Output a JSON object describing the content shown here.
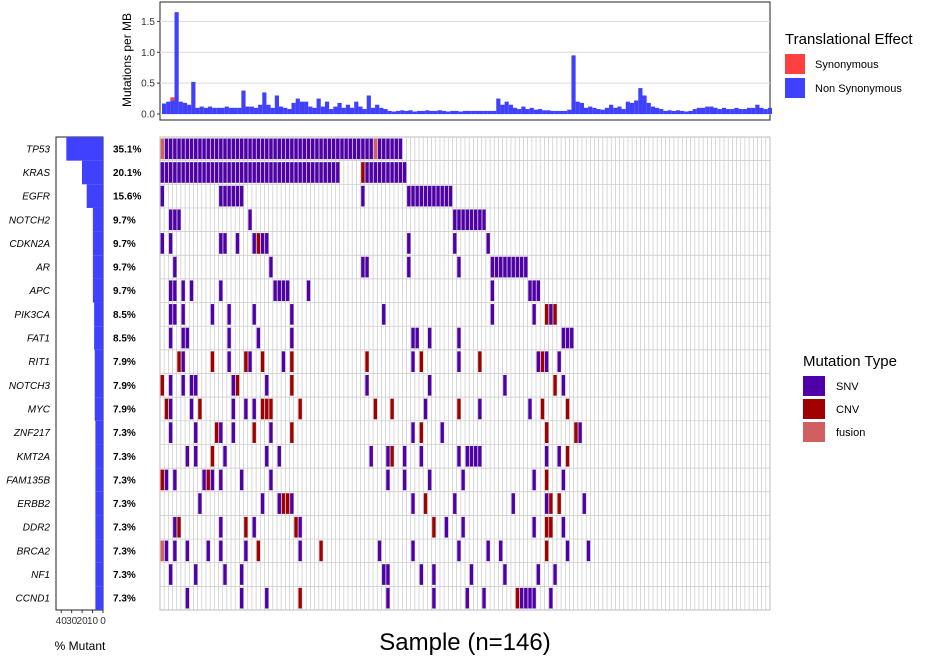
{
  "chart_data": [
    {
      "type": "bar",
      "ylabel": "Mutations per MB",
      "yticks": [
        "0.0",
        "0.5",
        "1.0",
        "1.5"
      ],
      "ylim": [
        0,
        1.75
      ],
      "grid": true,
      "legend": {
        "title": "Translational Effect",
        "position": "right",
        "items": [
          {
            "label": "Synonymous",
            "color": "#ff4040"
          },
          {
            "label": "Non Synonymous",
            "color": "#4040ff"
          }
        ]
      },
      "series": [
        {
          "name": "Non Synonymous",
          "color": "#4040ff",
          "values": [
            0.17,
            0.2,
            0.22,
            1.65,
            0.2,
            0.18,
            0.15,
            0.52,
            0.1,
            0.12,
            0.1,
            0.12,
            0.1,
            0.1,
            0.1,
            0.12,
            0.1,
            0.1,
            0.1,
            0.38,
            0.12,
            0.12,
            0.1,
            0.15,
            0.35,
            0.15,
            0.1,
            0.3,
            0.12,
            0.1,
            0.08,
            0.18,
            0.25,
            0.2,
            0.2,
            0.12,
            0.1,
            0.25,
            0.12,
            0.2,
            0.08,
            0.12,
            0.18,
            0.1,
            0.15,
            0.1,
            0.2,
            0.12,
            0.08,
            0.3,
            0.1,
            0.15,
            0.1,
            0.08,
            0.05,
            0.04,
            0.05,
            0.06,
            0.05,
            0.06,
            0.04,
            0.05,
            0.05,
            0.06,
            0.05,
            0.05,
            0.06,
            0.05,
            0.04,
            0.05,
            0.05,
            0.04,
            0.05,
            0.05,
            0.05,
            0.05,
            0.05,
            0.05,
            0.05,
            0.05,
            0.25,
            0.15,
            0.2,
            0.15,
            0.1,
            0.08,
            0.12,
            0.08,
            0.1,
            0.07,
            0.08,
            0.06,
            0.06,
            0.05,
            0.05,
            0.05,
            0.05,
            0.07,
            0.95,
            0.2,
            0.18,
            0.1,
            0.12,
            0.1,
            0.08,
            0.07,
            0.1,
            0.15,
            0.1,
            0.12,
            0.08,
            0.2,
            0.18,
            0.22,
            0.42,
            0.3,
            0.18,
            0.12,
            0.1,
            0.08,
            0.05,
            0.06,
            0.05,
            0.06,
            0.05,
            0.04,
            0.05,
            0.08,
            0.1,
            0.1,
            0.12,
            0.12,
            0.1,
            0.08,
            0.1,
            0.08,
            0.08,
            0.1,
            0.08,
            0.08,
            0.1,
            0.1,
            0.15,
            0.1,
            0.08,
            0.1
          ]
        },
        {
          "name": "Synonymous",
          "color": "#ff4040",
          "values": [
            0,
            0,
            0.05,
            0,
            0,
            0,
            0,
            0,
            0,
            0,
            0,
            0,
            0,
            0,
            0,
            0,
            0,
            0,
            0,
            0,
            0,
            0,
            0,
            0,
            0,
            0,
            0,
            0,
            0,
            0,
            0,
            0,
            0,
            0,
            0,
            0,
            0,
            0,
            0,
            0,
            0,
            0,
            0,
            0,
            0,
            0,
            0,
            0,
            0,
            0,
            0,
            0,
            0,
            0,
            0,
            0,
            0,
            0,
            0,
            0,
            0,
            0,
            0,
            0,
            0,
            0,
            0,
            0,
            0,
            0,
            0,
            0,
            0,
            0,
            0,
            0,
            0,
            0,
            0,
            0,
            0,
            0,
            0,
            0,
            0,
            0,
            0,
            0,
            0,
            0,
            0,
            0,
            0,
            0,
            0,
            0,
            0,
            0,
            0,
            0,
            0,
            0,
            0,
            0,
            0,
            0,
            0,
            0,
            0,
            0,
            0,
            0,
            0,
            0,
            0,
            0,
            0,
            0,
            0,
            0,
            0,
            0,
            0,
            0,
            0,
            0,
            0,
            0,
            0,
            0,
            0,
            0,
            0,
            0,
            0,
            0,
            0,
            0,
            0,
            0,
            0,
            0,
            0,
            0,
            0,
            0,
            0,
            0
          ]
        }
      ]
    },
    {
      "type": "heatmap",
      "xlabel": "Sample (n=146)",
      "n_samples": 146,
      "genes": [
        "TP53",
        "KRAS",
        "EGFR",
        "NOTCH2",
        "CDKN2A",
        "AR",
        "APC",
        "PIK3CA",
        "FAT1",
        "RIT1",
        "NOTCH3",
        "MYC",
        "ZNF217",
        "KMT2A",
        "FAM135B",
        "ERBB2",
        "DDR2",
        "BRCA2",
        "NF1",
        "CCND1"
      ],
      "percent_labels": [
        "35.1%",
        "20.1%",
        "15.6%",
        "9.7%",
        "9.7%",
        "9.7%",
        "9.7%",
        "8.5%",
        "8.5%",
        "7.9%",
        "7.9%",
        "7.9%",
        "7.3%",
        "7.3%",
        "7.3%",
        "7.3%",
        "7.3%",
        "7.3%",
        "7.3%",
        "7.3%"
      ],
      "percent_values": [
        35.1,
        20.1,
        15.6,
        9.7,
        9.7,
        9.7,
        9.7,
        8.5,
        8.5,
        7.9,
        7.9,
        7.9,
        7.3,
        7.3,
        7.3,
        7.3,
        7.3,
        7.3,
        7.3,
        7.3
      ],
      "legend": {
        "title": "Mutation Type",
        "position": "right",
        "items": [
          {
            "label": "SNV",
            "color": "#5000a8"
          },
          {
            "label": "CNV",
            "color": "#a00000"
          },
          {
            "label": "fusion",
            "color": "#d06060"
          }
        ]
      },
      "mutations": {
        "TP53": {
          "snv": [
            "1-50",
            "52-57"
          ],
          "cnv": [],
          "fusion": [
            "0",
            "51"
          ]
        },
        "KRAS": {
          "snv": [
            "0-42",
            "49-58"
          ],
          "cnv": [
            "48"
          ],
          "fusion": []
        },
        "EGFR": {
          "snv": [
            "0",
            "14-19",
            "48",
            "59-69"
          ],
          "cnv": [],
          "fusion": []
        },
        "NOTCH2": {
          "snv": [
            "2-4",
            "21",
            "70-77"
          ],
          "cnv": [],
          "fusion": []
        },
        "CDKN2A": {
          "snv": [
            "0",
            "2",
            "14-15",
            "18",
            "22",
            "24-25",
            "59",
            "70",
            "78"
          ],
          "cnv": [
            "23"
          ],
          "fusion": []
        },
        "AR": {
          "snv": [
            "3",
            "26",
            "48-49",
            "59",
            "71",
            "79-87"
          ],
          "cnv": [],
          "fusion": []
        },
        "APC": {
          "snv": [
            "2",
            "3",
            "5",
            "7",
            "14",
            "27-30",
            "35",
            "79",
            "88-90"
          ],
          "cnv": [],
          "fusion": []
        },
        "PIK3CA": {
          "snv": [
            "2-3",
            "5",
            "12",
            "16",
            "22",
            "31",
            "53",
            "79",
            "89",
            "93"
          ],
          "cnv": [
            "92",
            "94"
          ],
          "fusion": []
        },
        "FAT1": {
          "snv": [
            "2",
            "5-6",
            "16",
            "23",
            "31",
            "60-61",
            "64",
            "71",
            "96-98"
          ],
          "cnv": [],
          "fusion": []
        },
        "RIT1": {
          "snv": [
            "5",
            "16",
            "21",
            "29",
            "60",
            "71",
            "90",
            "92",
            "95"
          ],
          "cnv": [
            "4",
            "12",
            "20",
            "24",
            "31",
            "49",
            "62",
            "76",
            "91"
          ],
          "fusion": []
        },
        "NOTCH3": {
          "snv": [
            "2",
            "5",
            "7-8",
            "17",
            "25",
            "49",
            "64",
            "82",
            "96"
          ],
          "cnv": [
            "0",
            "18",
            "31",
            "94"
          ],
          "fusion": []
        },
        "MYC": {
          "snv": [
            "2",
            "7",
            "17",
            "20",
            "22",
            "63",
            "76",
            "88"
          ],
          "cnv": [
            "1",
            "9",
            "24-26",
            "33",
            "51",
            "55",
            "71",
            "91",
            "97"
          ],
          "fusion": []
        },
        "ZNF217": {
          "snv": [
            "2",
            "8",
            "14",
            "17",
            "26",
            "60",
            "67",
            "92",
            "100"
          ],
          "cnv": [
            "13",
            "22",
            "31",
            "62",
            "92",
            "99"
          ],
          "fusion": []
        },
        "KMT2A": {
          "snv": [
            "6",
            "8",
            "15",
            "25",
            "28",
            "50",
            "54",
            "58",
            "62",
            "71",
            "73-76",
            "92",
            "95"
          ],
          "cnv": [
            "12",
            "55",
            "97"
          ],
          "fusion": []
        },
        "FAM135B": {
          "snv": [
            "1",
            "3",
            "10",
            "12",
            "14",
            "19",
            "26",
            "54",
            "58",
            "64",
            "72",
            "89",
            "96"
          ],
          "cnv": [
            "0",
            "11",
            "92"
          ],
          "fusion": []
        },
        "ERBB2": {
          "snv": [
            "9",
            "24",
            "28",
            "31",
            "60",
            "70",
            "84",
            "92",
            "101"
          ],
          "cnv": [
            "29",
            "30",
            "63",
            "93",
            "95"
          ],
          "fusion": []
        },
        "DDR2": {
          "snv": [
            "3",
            "14",
            "22",
            "33",
            "68",
            "72",
            "89",
            "93",
            "96"
          ],
          "cnv": [
            "4",
            "20",
            "32",
            "65",
            "92",
            "93"
          ],
          "fusion": []
        },
        "BRCA2": {
          "snv": [
            "1",
            "3",
            "6",
            "11",
            "14",
            "20",
            "33",
            "52",
            "60",
            "71",
            "78",
            "81",
            "97",
            "102"
          ],
          "cnv": [
            "23",
            "38",
            "92"
          ],
          "fusion": [
            "0"
          ]
        },
        "NF1": {
          "snv": [
            "2",
            "8",
            "15",
            "19",
            "53-54",
            "62",
            "65",
            "74",
            "82",
            "90",
            "94"
          ],
          "cnv": [],
          "fusion": []
        },
        "CCND1": {
          "snv": [
            "6",
            "19",
            "25",
            "54",
            "65",
            "73",
            "77",
            "86-89",
            "93"
          ],
          "cnv": [
            "33",
            "85"
          ],
          "fusion": []
        }
      },
      "left_bar": {
        "xlabel": "% Mutant",
        "ticks": [
          "40",
          "30",
          "20",
          "10",
          "0"
        ],
        "color": "#4040ff"
      }
    }
  ]
}
